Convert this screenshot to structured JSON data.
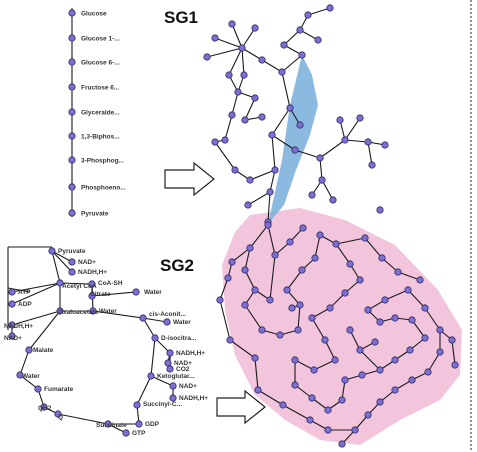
{
  "titles": {
    "sg1": "SG1",
    "sg2": "SG2"
  },
  "colors": {
    "blue_region": "#7fb1dd",
    "pink_region": "#f2bfd9",
    "node_fill": "#7b6fd1"
  },
  "pathway_linear": [
    "Glucose",
    "Glucose 1-...",
    "Glucose 6-...",
    "Fructose 6...",
    "Glyceralde...",
    "1,3-Biphos...",
    "3-Phosphog...",
    "Phosphoeno...",
    "Pyruvate"
  ],
  "pathway_cycle": [
    "Pyruvate",
    "NAD+",
    "NADH,H+",
    "Acetyl CoA",
    "CoA-SH",
    "ATP",
    "ADP",
    "Citrate",
    "Water",
    "Oxaloacetate",
    "Water",
    "cis-Aconit...",
    "Water",
    "NADH,H+",
    "NAD+",
    "Malate",
    "D-isocitra...",
    "NADH,H+",
    "NAD+",
    "CO2",
    "Water",
    "Fumarate",
    "Ketoglutar...",
    "NAD+",
    "NADH,H+",
    "QH2",
    "Q",
    "Succinyl-C...",
    "GDP",
    "Succinate",
    "GTP"
  ]
}
